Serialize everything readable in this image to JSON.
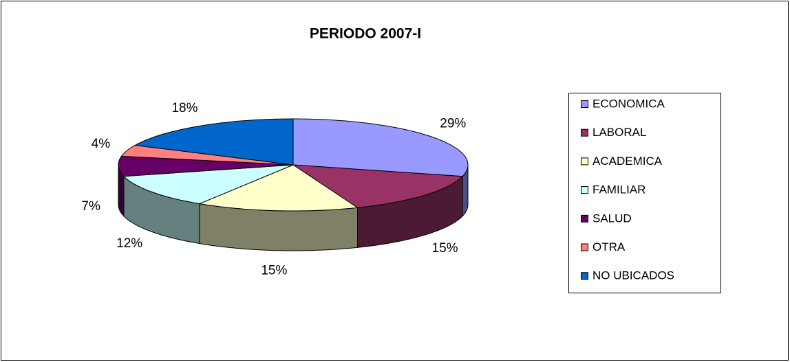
{
  "chart_data": {
    "type": "pie",
    "title": "PERIODO 2007-I",
    "categories": [
      "ECONOMICA",
      "LABORAL",
      "ACADEMICA",
      "FAMILIAR",
      "SALUD",
      "OTRA",
      "NO UBICADOS"
    ],
    "values": [
      29,
      15,
      15,
      12,
      7,
      4,
      18
    ],
    "value_labels": [
      "29%",
      "15%",
      "15%",
      "12%",
      "7%",
      "4%",
      "18%"
    ],
    "colors": [
      "#9999FF",
      "#993366",
      "#FFFFCC",
      "#CCFFFF",
      "#660066",
      "#FF8080",
      "#0066CC"
    ],
    "legend": "right"
  }
}
